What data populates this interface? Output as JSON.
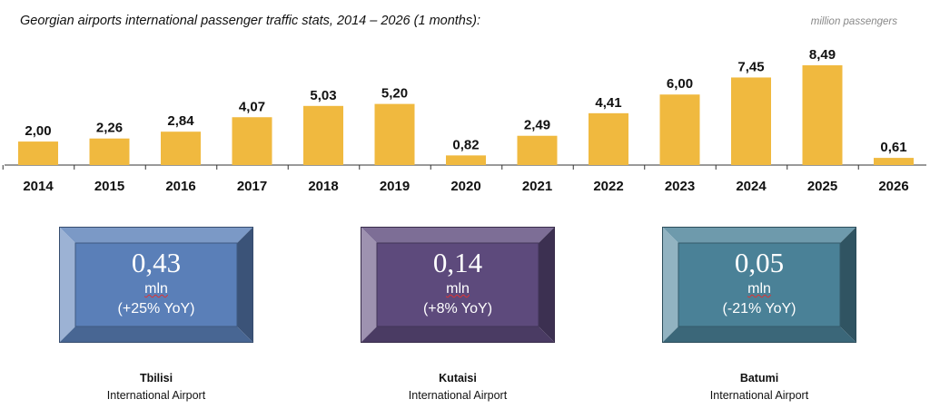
{
  "chart_data": {
    "type": "bar",
    "title": "Georgian airports international passenger traffic stats, 2014 – 2026 (1 months):",
    "ylabel": "million passengers",
    "categories": [
      "2014",
      "2015",
      "2016",
      "2017",
      "2018",
      "2019",
      "2020",
      "2021",
      "2022",
      "2023",
      "2024",
      "2025",
      "2026"
    ],
    "values": [
      2.0,
      2.26,
      2.84,
      4.07,
      5.03,
      5.2,
      0.82,
      2.49,
      4.41,
      6.0,
      7.45,
      8.49,
      0.61
    ],
    "labels": [
      "2,00",
      "2,26",
      "2,84",
      "4,07",
      "5,03",
      "5,20",
      "0,82",
      "2,49",
      "4,41",
      "6,00",
      "7,45",
      "8,49",
      "0,61"
    ],
    "ylim": [
      0,
      9
    ],
    "grid": false,
    "bar_color": "#f0b93f"
  },
  "airports": [
    {
      "value": "0,43",
      "unit": "mln",
      "change": "(+25% YoY)",
      "name": "Tbilisi",
      "sub": "International Airport",
      "color": "#5a7fb8"
    },
    {
      "value": "0,14",
      "unit": "mln",
      "change": "(+8% YoY)",
      "name": "Kutaisi",
      "sub": "International Airport",
      "color": "#5d4a7c"
    },
    {
      "value": "0,05",
      "unit": "mln",
      "change": "(-21% YoY)",
      "name": "Batumi",
      "sub": "International Airport",
      "color": "#4a8197"
    }
  ]
}
